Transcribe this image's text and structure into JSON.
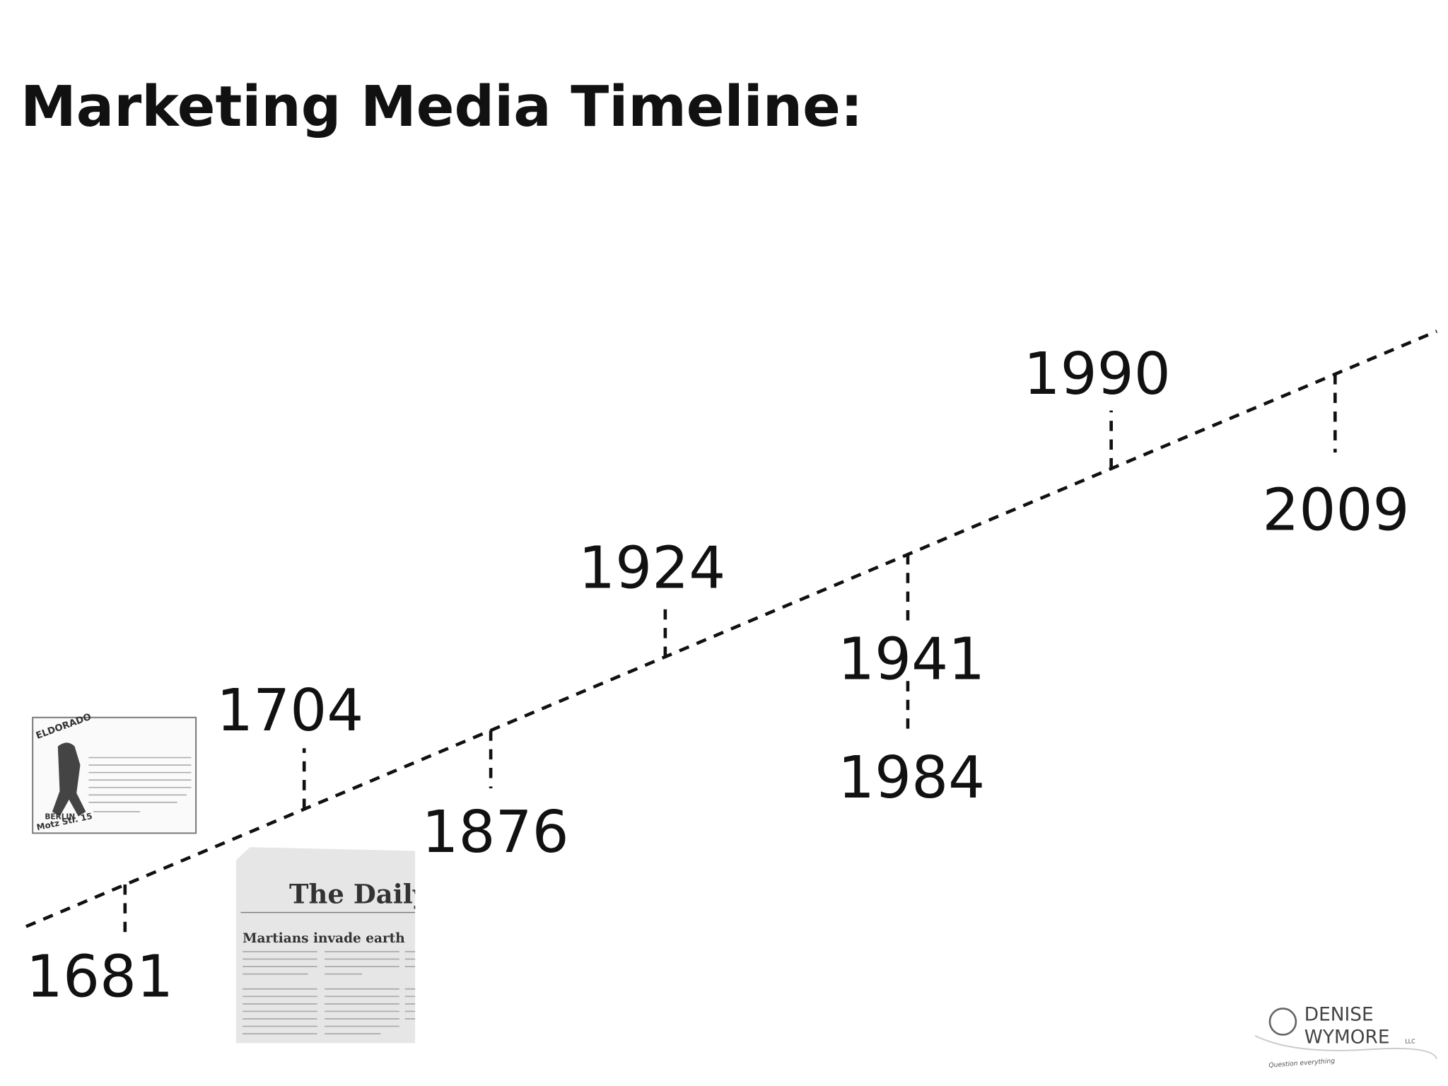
{
  "title": "Marketing Media Timeline:",
  "events": [
    {
      "label": "1681"
    },
    {
      "label": "1704"
    },
    {
      "label": "1876"
    },
    {
      "label": "1924"
    },
    {
      "label": "1941"
    },
    {
      "label": "1984"
    },
    {
      "label": "1990"
    },
    {
      "label": "2009"
    }
  ],
  "poster": {
    "title": "ELDORADO",
    "city": "BERLIN",
    "address": "Motz Str. 15"
  },
  "newspaper": {
    "masthead": "The Daily W",
    "headline": "Martians invade earth"
  },
  "logo": {
    "first": "DENISE",
    "last": "WYMORE",
    "suffix": "LLC",
    "tagline": "Question everything"
  }
}
